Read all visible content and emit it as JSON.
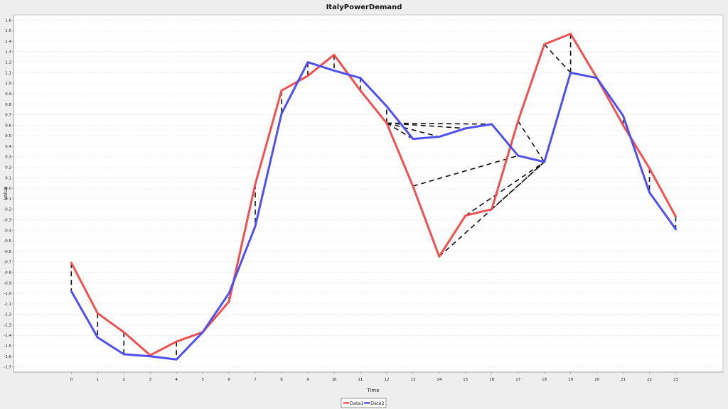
{
  "chart_data": {
    "type": "line",
    "title": "ItalyPowerDemand",
    "xlabel": "Time",
    "ylabel": "Value",
    "x": [
      0,
      1,
      2,
      3,
      4,
      5,
      6,
      7,
      8,
      9,
      10,
      11,
      12,
      13,
      14,
      15,
      16,
      17,
      18,
      19,
      20,
      21,
      22,
      23
    ],
    "xlim": [
      -2.2,
      24.8
    ],
    "ylim": [
      -1.75,
      1.65
    ],
    "x_tick_labels": [
      "0",
      "1",
      "2",
      "3",
      "4",
      "5",
      "6",
      "7",
      "8",
      "9",
      "10",
      "11",
      "12",
      "13",
      "14",
      "15",
      "16",
      "17",
      "18",
      "19",
      "20",
      "21",
      "22",
      "23"
    ],
    "y_ticks": [
      -1.7,
      -1.6,
      -1.5,
      -1.4,
      -1.3,
      -1.2,
      -1.1,
      -1.0,
      -0.9,
      -0.8,
      -0.7,
      -0.6,
      -0.5,
      -0.4,
      -0.3,
      -0.2,
      -0.1,
      0.0,
      0.1,
      0.2,
      0.3,
      0.4,
      0.5,
      0.6,
      0.7,
      0.8,
      0.9,
      1.0,
      1.1,
      1.2,
      1.3,
      1.4,
      1.5,
      1.6
    ],
    "y_tick_labels": [
      "-1.7",
      "-1.6",
      "-1.5",
      "-1.4",
      "-1.3",
      "-1.2",
      "-1.1",
      "-1.0",
      "-0.9",
      "-0.8",
      "-0.7",
      "-0.6",
      "-0.5",
      "-0.4",
      "-0.3",
      "-0.2",
      "-0.1",
      "0.0",
      "0.1",
      "0.2",
      "0.3",
      "0.4",
      "0.5",
      "0.6",
      "0.7",
      "0.8",
      "0.9",
      "1.0",
      "1.1",
      "1.2",
      "1.3",
      "1.4",
      "1.5",
      "1.6"
    ],
    "grid": true,
    "legend_position": "bottom-center",
    "series": [
      {
        "name": "Data1",
        "color": "#f05050",
        "values": [
          -0.71,
          -1.19,
          -1.37,
          -1.59,
          -1.46,
          -1.37,
          -1.08,
          0.04,
          0.93,
          1.07,
          1.27,
          0.93,
          0.62,
          0.02,
          -0.65,
          -0.26,
          -0.2,
          0.64,
          1.37,
          1.47,
          1.05,
          0.6,
          0.19,
          -0.27
        ]
      },
      {
        "name": "Data2",
        "color": "#5050f0",
        "values": [
          -0.98,
          -1.42,
          -1.58,
          -1.6,
          -1.63,
          -1.37,
          -1.0,
          -0.36,
          0.71,
          1.2,
          1.12,
          1.05,
          0.78,
          0.47,
          0.49,
          0.57,
          0.61,
          0.31,
          0.25,
          1.1,
          1.05,
          0.69,
          -0.04,
          -0.39
        ]
      }
    ],
    "alignment_path": [
      [
        0,
        0
      ],
      [
        1,
        1
      ],
      [
        2,
        2
      ],
      [
        3,
        3
      ],
      [
        4,
        4
      ],
      [
        5,
        5
      ],
      [
        6,
        6
      ],
      [
        7,
        7
      ],
      [
        8,
        8
      ],
      [
        9,
        9
      ],
      [
        10,
        10
      ],
      [
        11,
        11
      ],
      [
        12,
        12
      ],
      [
        12,
        13
      ],
      [
        12,
        14
      ],
      [
        12,
        15
      ],
      [
        12,
        16
      ],
      [
        13,
        17
      ],
      [
        14,
        18
      ],
      [
        15,
        18
      ],
      [
        16,
        18
      ],
      [
        17,
        18
      ],
      [
        18,
        19
      ],
      [
        19,
        19
      ],
      [
        20,
        20
      ],
      [
        21,
        21
      ],
      [
        22,
        22
      ],
      [
        23,
        23
      ]
    ]
  }
}
